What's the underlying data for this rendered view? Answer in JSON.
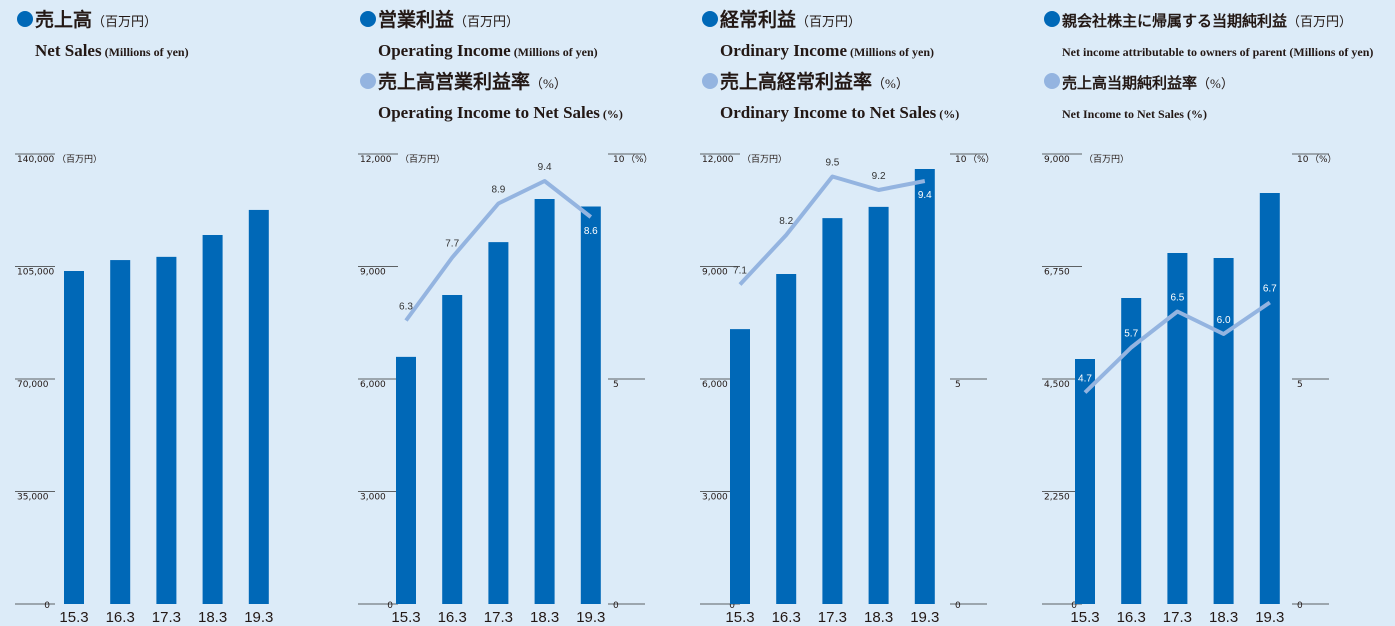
{
  "chart_data": [
    {
      "type": "bar",
      "categories": [
        "15.3",
        "16.3",
        "17.3",
        "18.3",
        "19.3"
      ],
      "series": [
        {
          "name": "売上高",
          "name_unit": "（百万円）",
          "name_en": "Net Sales",
          "name_en_unit": "(Millions of yen)",
          "color": "#0068b7",
          "values": [
            103600,
            107000,
            108000,
            114800,
            122600
          ]
        }
      ],
      "y_unit": "（百万円）",
      "ylim": [
        0,
        140000
      ],
      "yticks": [
        0,
        {
          "value": 35000,
          "label": "35,000"
        },
        {
          "value": 70000,
          "label": "70,000"
        },
        {
          "value": 105000,
          "label": "105,000"
        },
        {
          "value": 140000,
          "label": "140,000"
        }
      ]
    },
    {
      "type": "bar",
      "categories": [
        "15.3",
        "16.3",
        "17.3",
        "18.3",
        "19.3"
      ],
      "series": [
        {
          "name": "営業利益",
          "name_unit": "（百万円）",
          "name_en": "Operating Income",
          "name_en_unit": "(Millions of yen)",
          "color": "#0068b7",
          "values": [
            6590,
            8240,
            9650,
            10800,
            10600
          ]
        },
        {
          "name": "売上高営業利益率",
          "name_unit": "（%）",
          "name_en": "Operating Income to Net Sales",
          "name_en_unit": "(%)",
          "color": "#94b4e0",
          "type": "line",
          "axis": "y2",
          "values": [
            6.3,
            7.7,
            8.9,
            9.4,
            8.6
          ]
        }
      ],
      "y_unit": "（百万円）",
      "ylim": [
        0,
        12000
      ],
      "yticks": [
        0,
        {
          "value": 3000,
          "label": "3,000"
        },
        {
          "value": 6000,
          "label": "6,000"
        },
        {
          "value": 9000,
          "label": "9,000"
        },
        {
          "value": 12000,
          "label": "12,000"
        }
      ],
      "y2_unit": "（%）",
      "y2lim": [
        0,
        10
      ],
      "y2ticks": [
        0,
        5,
        10
      ]
    },
    {
      "type": "bar",
      "categories": [
        "15.3",
        "16.3",
        "17.3",
        "18.3",
        "19.3"
      ],
      "series": [
        {
          "name": "経常利益",
          "name_unit": "（百万円）",
          "name_en": "Ordinary Income",
          "name_en_unit": "(Millions of yen)",
          "color": "#0068b7",
          "values": [
            7330,
            8800,
            10290,
            10590,
            11600
          ]
        },
        {
          "name": "売上高経常利益率",
          "name_unit": "（%）",
          "name_en": "Ordinary Income to Net Sales",
          "name_en_unit": "(%)",
          "color": "#94b4e0",
          "type": "line",
          "axis": "y2",
          "values": [
            7.1,
            8.2,
            9.5,
            9.2,
            9.4
          ]
        }
      ],
      "y_unit": "（百万円）",
      "ylim": [
        0,
        12000
      ],
      "yticks": [
        0,
        {
          "value": 3000,
          "label": "3,000"
        },
        {
          "value": 6000,
          "label": "6,000"
        },
        {
          "value": 9000,
          "label": "9,000"
        },
        {
          "value": 12000,
          "label": "12,000"
        }
      ],
      "y2_unit": "（%）",
      "y2lim": [
        0,
        10
      ],
      "y2ticks": [
        0,
        5,
        10
      ]
    },
    {
      "type": "bar",
      "categories": [
        "15.3",
        "16.3",
        "17.3",
        "18.3",
        "19.3"
      ],
      "series": [
        {
          "name": "親会社株主に帰属する当期純利益",
          "name_unit": "（百万円）",
          "name_en": "Net income attributable to owners of parent",
          "name_en_unit": "(Millions of yen)",
          "color": "#0068b7",
          "values": [
            4900,
            6120,
            7020,
            6920,
            8220
          ]
        },
        {
          "name": "売上高当期純利益率",
          "name_unit": "（%）",
          "name_en": "Net Income to Net Sales",
          "name_en_unit": "(%)",
          "color": "#94b4e0",
          "type": "line",
          "axis": "y2",
          "values": [
            4.7,
            5.7,
            6.5,
            6.0,
            6.7
          ],
          "value_labels": [
            "4.7",
            "5.7",
            "6.5",
            "6.0",
            "6.7"
          ]
        }
      ],
      "y_unit": "（百万円）",
      "ylim": [
        0,
        9000
      ],
      "yticks": [
        0,
        {
          "value": 2250,
          "label": "2,250"
        },
        {
          "value": 4500,
          "label": "4,500"
        },
        {
          "value": 6750,
          "label": "6,750"
        },
        {
          "value": 9000,
          "label": "9,000"
        }
      ],
      "y2_unit": "（%）",
      "y2lim": [
        0,
        10
      ],
      "y2ticks": [
        0,
        5,
        10
      ]
    }
  ]
}
